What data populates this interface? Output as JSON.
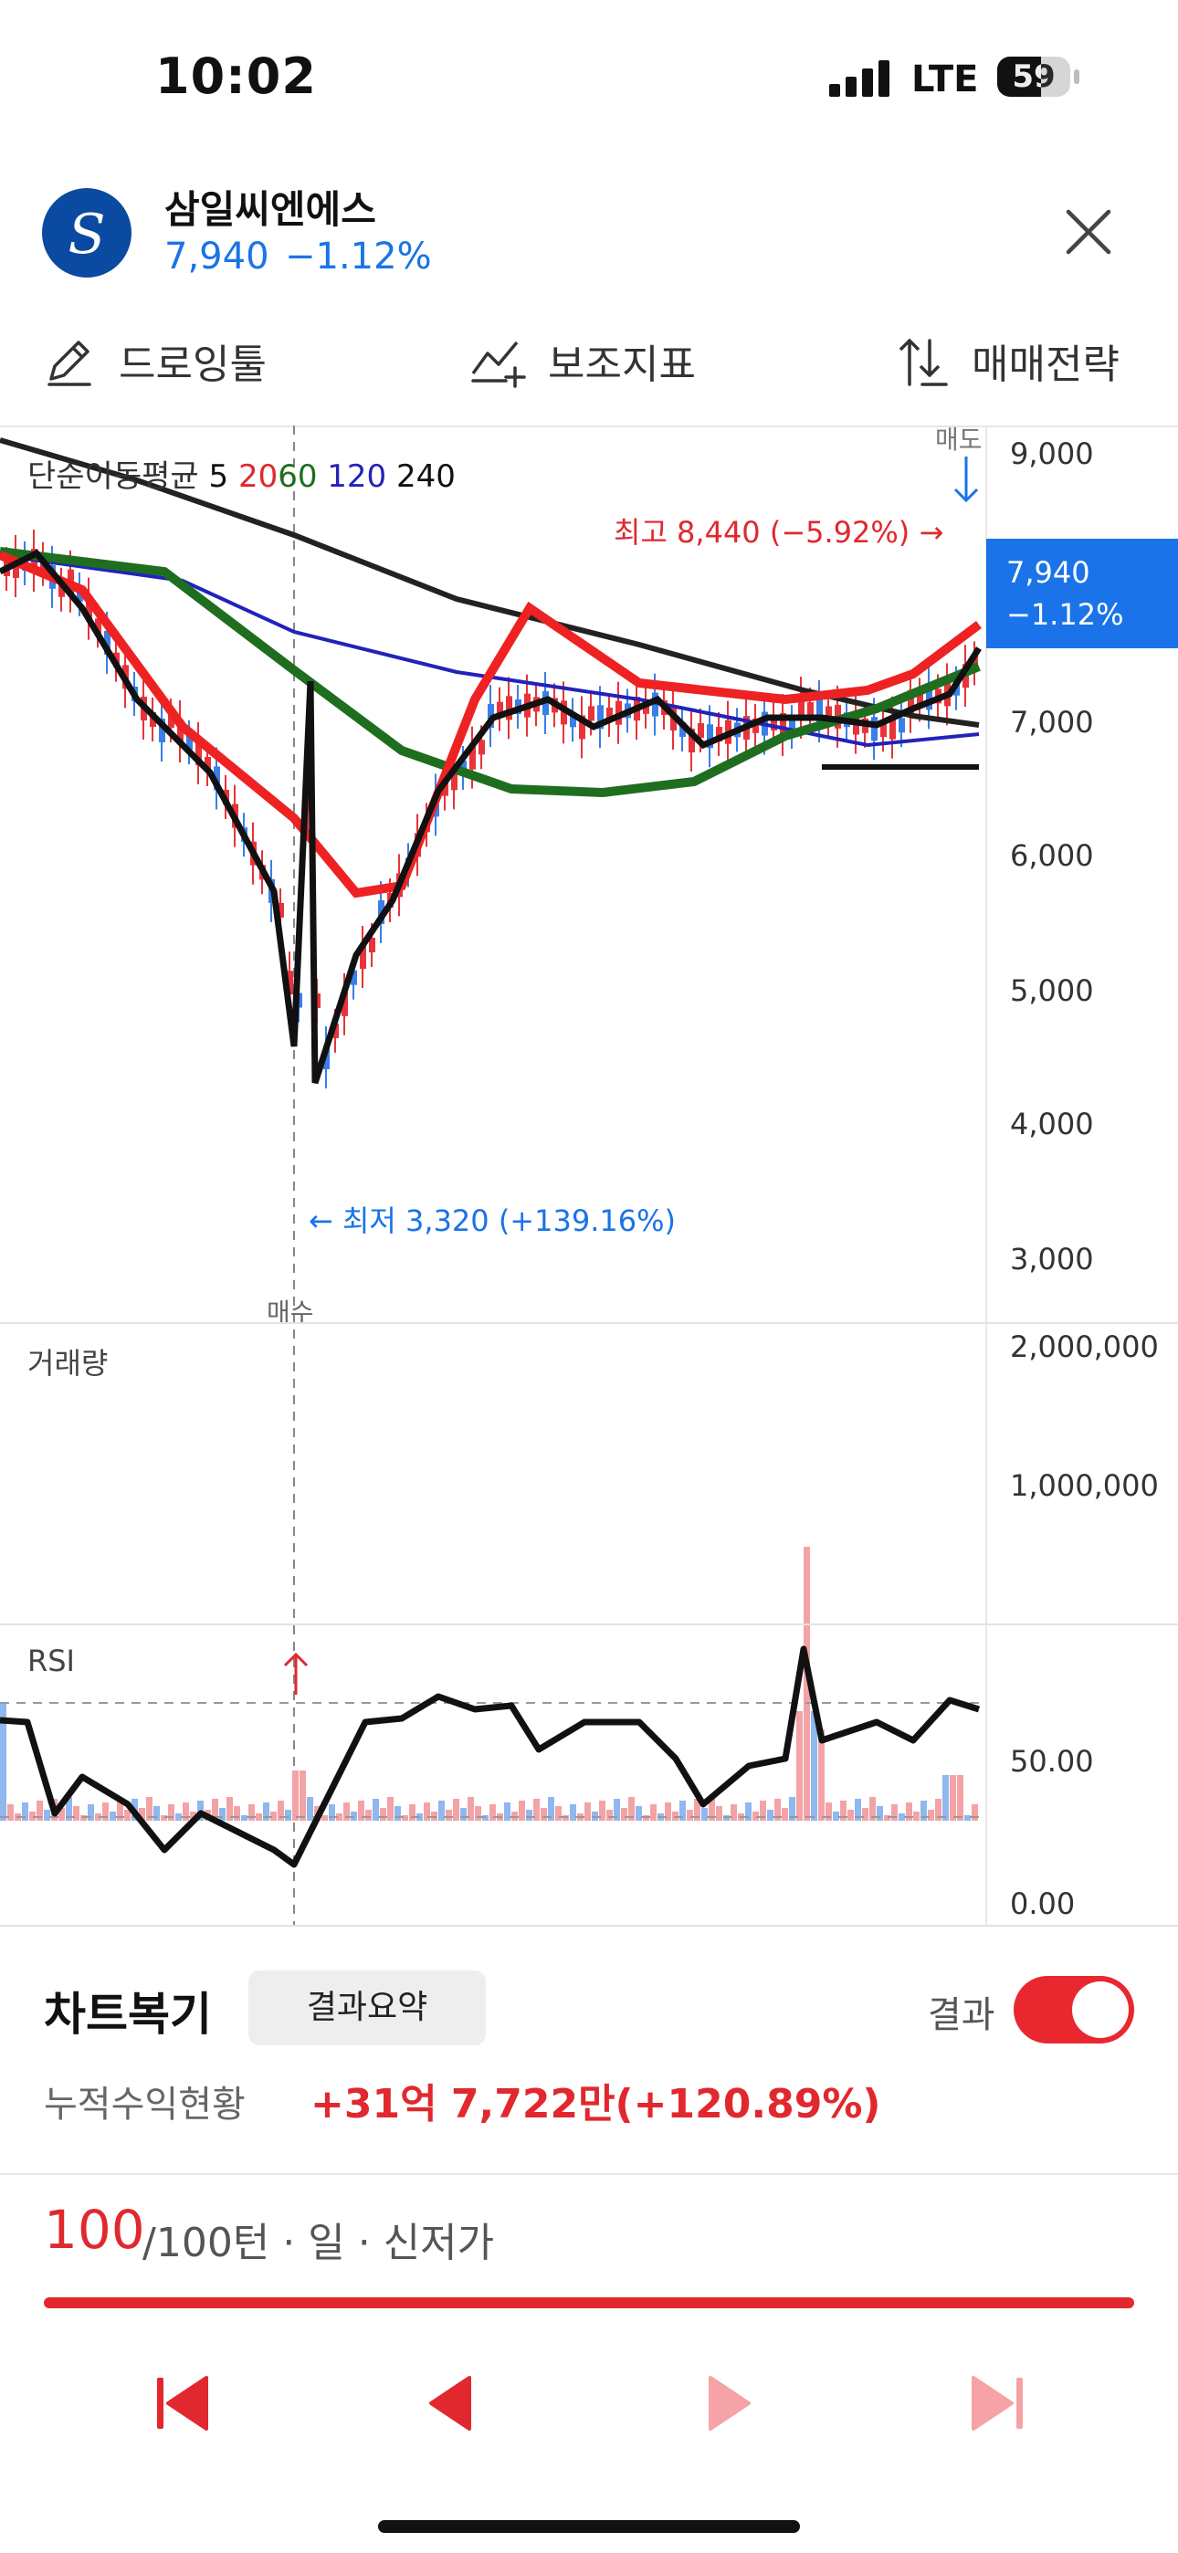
{
  "status_bar": {
    "time": "10:02",
    "network": "LTE",
    "battery": "59"
  },
  "header": {
    "stock_name": "삼일씨엔에스",
    "price": "7,940",
    "change": "−1.12%",
    "logo_icon": "company-logo-icon"
  },
  "toolbar": {
    "drawing": "드로잉툴",
    "indicators": "보조지표",
    "strategy": "매매전략"
  },
  "chart": {
    "legend": {
      "label": "단순이동평균",
      "ma5": "5",
      "ma20": "20",
      "ma60": "60",
      "ma120": "120",
      "ma240": "240"
    },
    "price_axis": [
      "9,000",
      "7,000",
      "6,000",
      "5,000",
      "4,000",
      "3,000"
    ],
    "current_price_tag": {
      "price": "7,940",
      "change": "−1.12%"
    },
    "high_annotation": "최고 8,440 (−5.92%) →",
    "low_annotation": "← 최저 3,320 (+139.16%)",
    "buy_marker": "매수",
    "sell_marker": "매도",
    "volume_label": "거래량",
    "volume_axis": [
      "2,000,000",
      "1,000,000"
    ],
    "rsi_label": "RSI",
    "rsi_axis": [
      "50.00",
      "0.00"
    ],
    "colors": {
      "ma5": "#111111",
      "ma20": "#ee2222",
      "ma60": "#1f6e1f",
      "ma120": "#2222bb",
      "ma240": "#222222",
      "up": "#e8333a",
      "down": "#3a7ee8",
      "accent": "#1a73e8"
    }
  },
  "replay": {
    "title": "차트복기",
    "summary_button": "결과요약",
    "result_label": "결과",
    "result_toggle_on": true,
    "cumulative_label": "누적수익현황",
    "cumulative_value": "+31억 7,722만(+120.89%)",
    "turn_current": "100",
    "turn_rest": "/100턴 · 일 · 신저가",
    "progress_percent": 100
  },
  "controls": {
    "first": "skip-to-start-icon",
    "prev": "previous-icon",
    "next": "next-icon",
    "last": "skip-to-end-icon"
  }
}
